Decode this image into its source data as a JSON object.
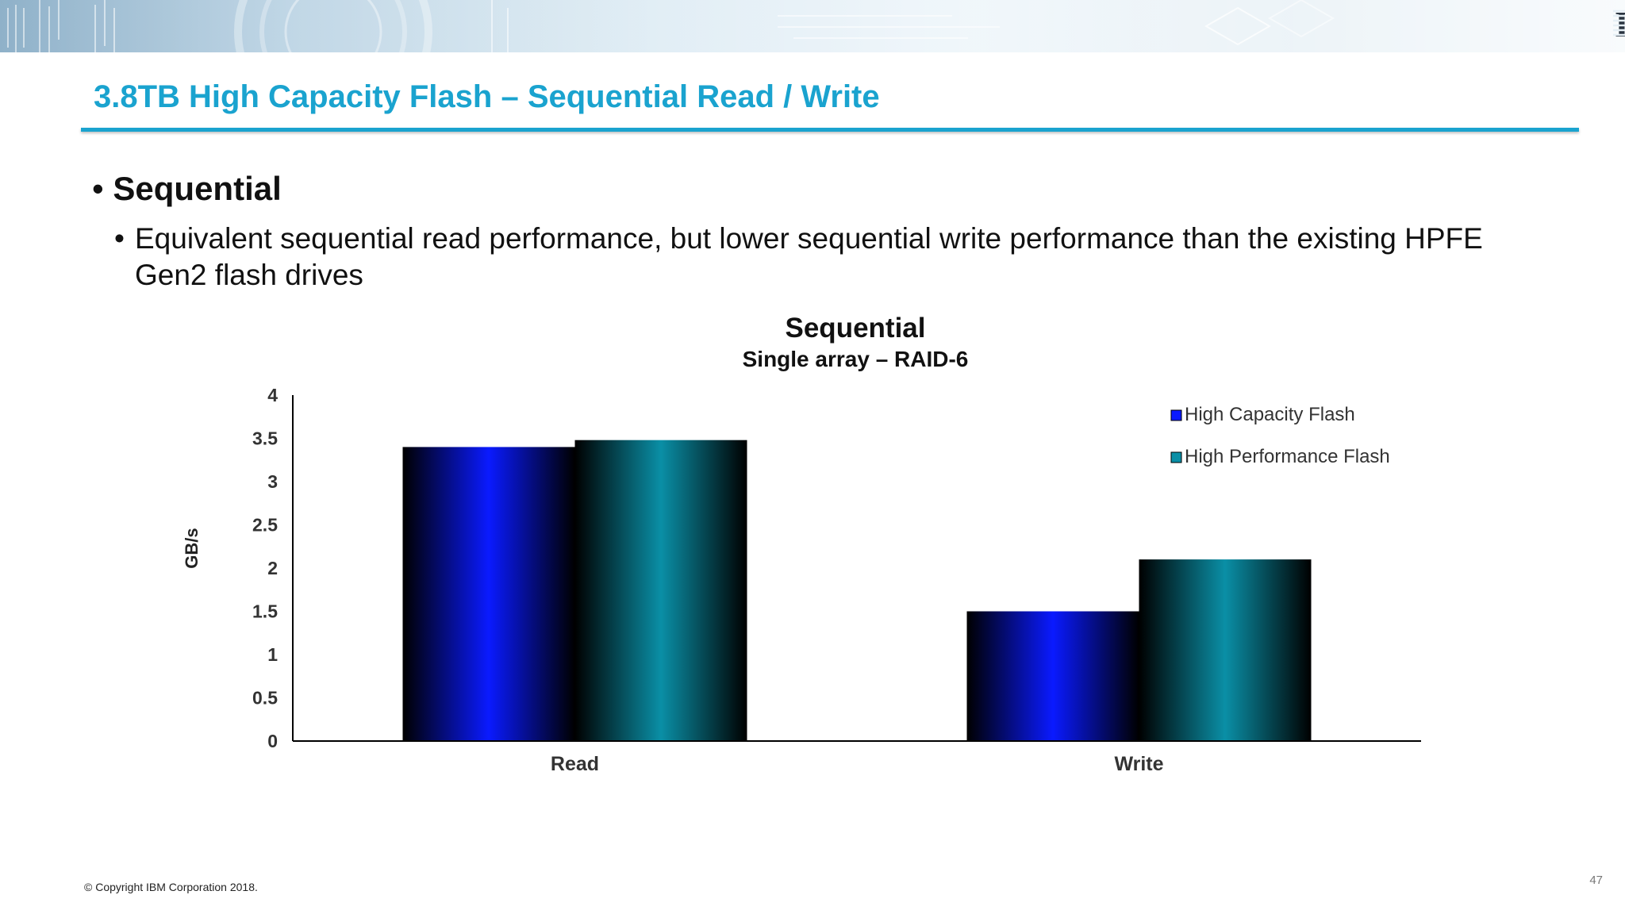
{
  "header": {
    "logo_text": "IBM",
    "accent_color": "#1aa3cf"
  },
  "slide": {
    "title": "3.8TB High Capacity Flash – Sequential Read / Write",
    "bullet_level1": "Sequential",
    "bullet_level2": "Equivalent sequential read performance, but lower sequential write performance than the existing HPFE Gen2 flash drives",
    "bullet_glyph": "•"
  },
  "chart_data": {
    "type": "bar",
    "title": "Sequential",
    "subtitle": "Single array – RAID-6",
    "xlabel": "",
    "ylabel": "GB/s",
    "categories": [
      "Read",
      "Write"
    ],
    "series": [
      {
        "name": "High Capacity Flash",
        "values": [
          3.4,
          1.5
        ],
        "color": "#0a1aff"
      },
      {
        "name": "High Performance Flash",
        "values": [
          3.48,
          2.1
        ],
        "color": "#0a8fa6"
      }
    ],
    "ylim": [
      0,
      4
    ],
    "yticks": [
      "0",
      "0.5",
      "1",
      "1.5",
      "2",
      "2.5",
      "3",
      "3.5",
      "4"
    ],
    "grid": false,
    "legend_position": "top-right"
  },
  "footer": {
    "copyright": "© Copyright IBM Corporation 2018.",
    "page_number": "47"
  }
}
